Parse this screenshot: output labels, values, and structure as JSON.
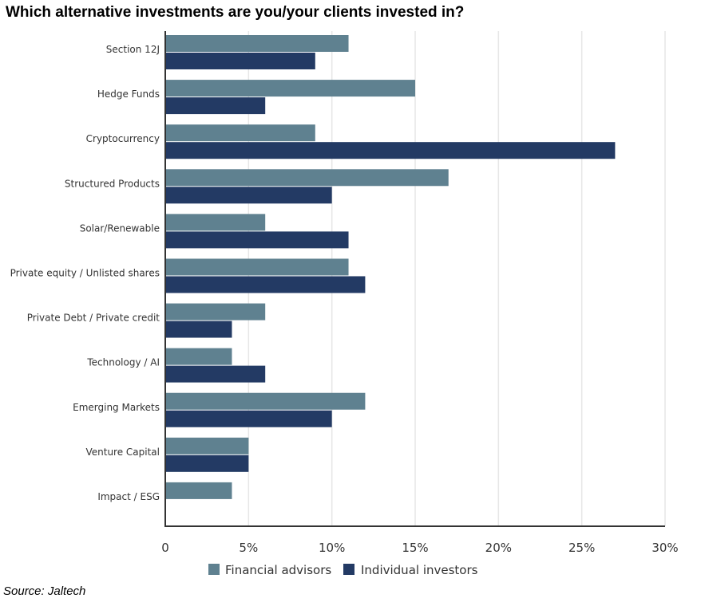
{
  "title": "Which alternative investments are you/your clients invested in?",
  "source": "Source: Jaltech",
  "chart_data": {
    "type": "bar",
    "orientation": "horizontal",
    "categories": [
      "Section 12J",
      "Hedge Funds",
      "Cryptocurrency",
      "Structured Products",
      "Solar/Renewable",
      "Private equity / Unlisted shares",
      "Private Debt / Private credit",
      "Technology / AI",
      "Emerging Markets",
      "Venture Capital",
      "Impact / ESG"
    ],
    "series": [
      {
        "name": "Financial advisors",
        "color": "#5f8190",
        "values": [
          11,
          15,
          9,
          17,
          6,
          11,
          6,
          4,
          12,
          5,
          4
        ]
      },
      {
        "name": "Individual investors",
        "color": "#233a64",
        "values": [
          9,
          6,
          27,
          10,
          11,
          12,
          4,
          6,
          10,
          5,
          0
        ]
      }
    ],
    "xlim": [
      0,
      30
    ],
    "xticks": [
      0,
      5,
      10,
      15,
      20,
      25,
      30
    ],
    "xtick_labels": [
      "0",
      "5%",
      "10%",
      "15%",
      "20%",
      "25%",
      "30%"
    ],
    "grid": true,
    "legend": "bottom"
  }
}
